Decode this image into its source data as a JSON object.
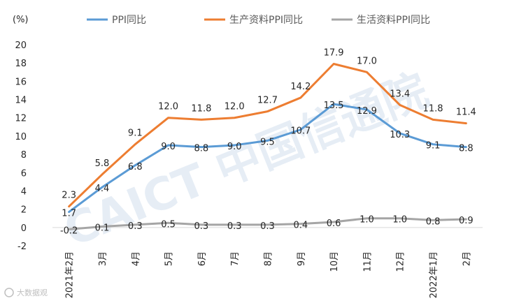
{
  "chart_data": {
    "type": "line",
    "unit_label": "(%)",
    "categories": [
      "2021年2月",
      "3月",
      "4月",
      "5月",
      "6月",
      "7月",
      "8月",
      "9月",
      "10月",
      "11月",
      "12月",
      "2022年1月",
      "2月"
    ],
    "ylim": [
      -2,
      20
    ],
    "yticks": [
      -2,
      0,
      2,
      4,
      6,
      8,
      10,
      12,
      14,
      16,
      18,
      20
    ],
    "grid": false,
    "legend_position": "top",
    "series": [
      {
        "name": "PPI同比",
        "color": "#5b9bd5",
        "values": [
          1.7,
          4.4,
          6.8,
          9.0,
          8.8,
          9.0,
          9.5,
          10.7,
          13.5,
          12.9,
          10.3,
          9.1,
          8.8
        ],
        "labels": [
          "1.7",
          "4.4",
          "6.8",
          "9.0",
          "8.8",
          "9.0",
          "9.5",
          "10.7",
          "13.5",
          "12.9",
          "10.3",
          "9.1",
          "8.8"
        ]
      },
      {
        "name": "生产资料PPI同比",
        "color": "#ed7d31",
        "values": [
          2.3,
          5.8,
          9.1,
          12.0,
          11.8,
          12.0,
          12.7,
          14.2,
          17.9,
          17.0,
          13.4,
          11.8,
          11.4
        ],
        "labels": [
          "2.3",
          "5.8",
          "9.1",
          "12.0",
          "11.8",
          "12.0",
          "12.7",
          "14.2",
          "17.9",
          "17.0",
          "13.4",
          "11.8",
          "11.4"
        ]
      },
      {
        "name": "生活资料PPI同比",
        "color": "#a5a5a5",
        "values": [
          -0.2,
          0.1,
          0.3,
          0.5,
          0.3,
          0.3,
          0.3,
          0.4,
          0.6,
          1.0,
          1.0,
          0.8,
          0.9
        ],
        "labels": [
          "-0.2",
          "0.1",
          "0.3",
          "0.5",
          "0.3",
          "0.3",
          "0.3",
          "0.4",
          "0.6",
          "1.0",
          "1.0",
          "0.8",
          "0.9"
        ]
      }
    ]
  },
  "watermark": {
    "text": "CAICT 中国信通院"
  },
  "footer": {
    "text": "大数据观"
  }
}
